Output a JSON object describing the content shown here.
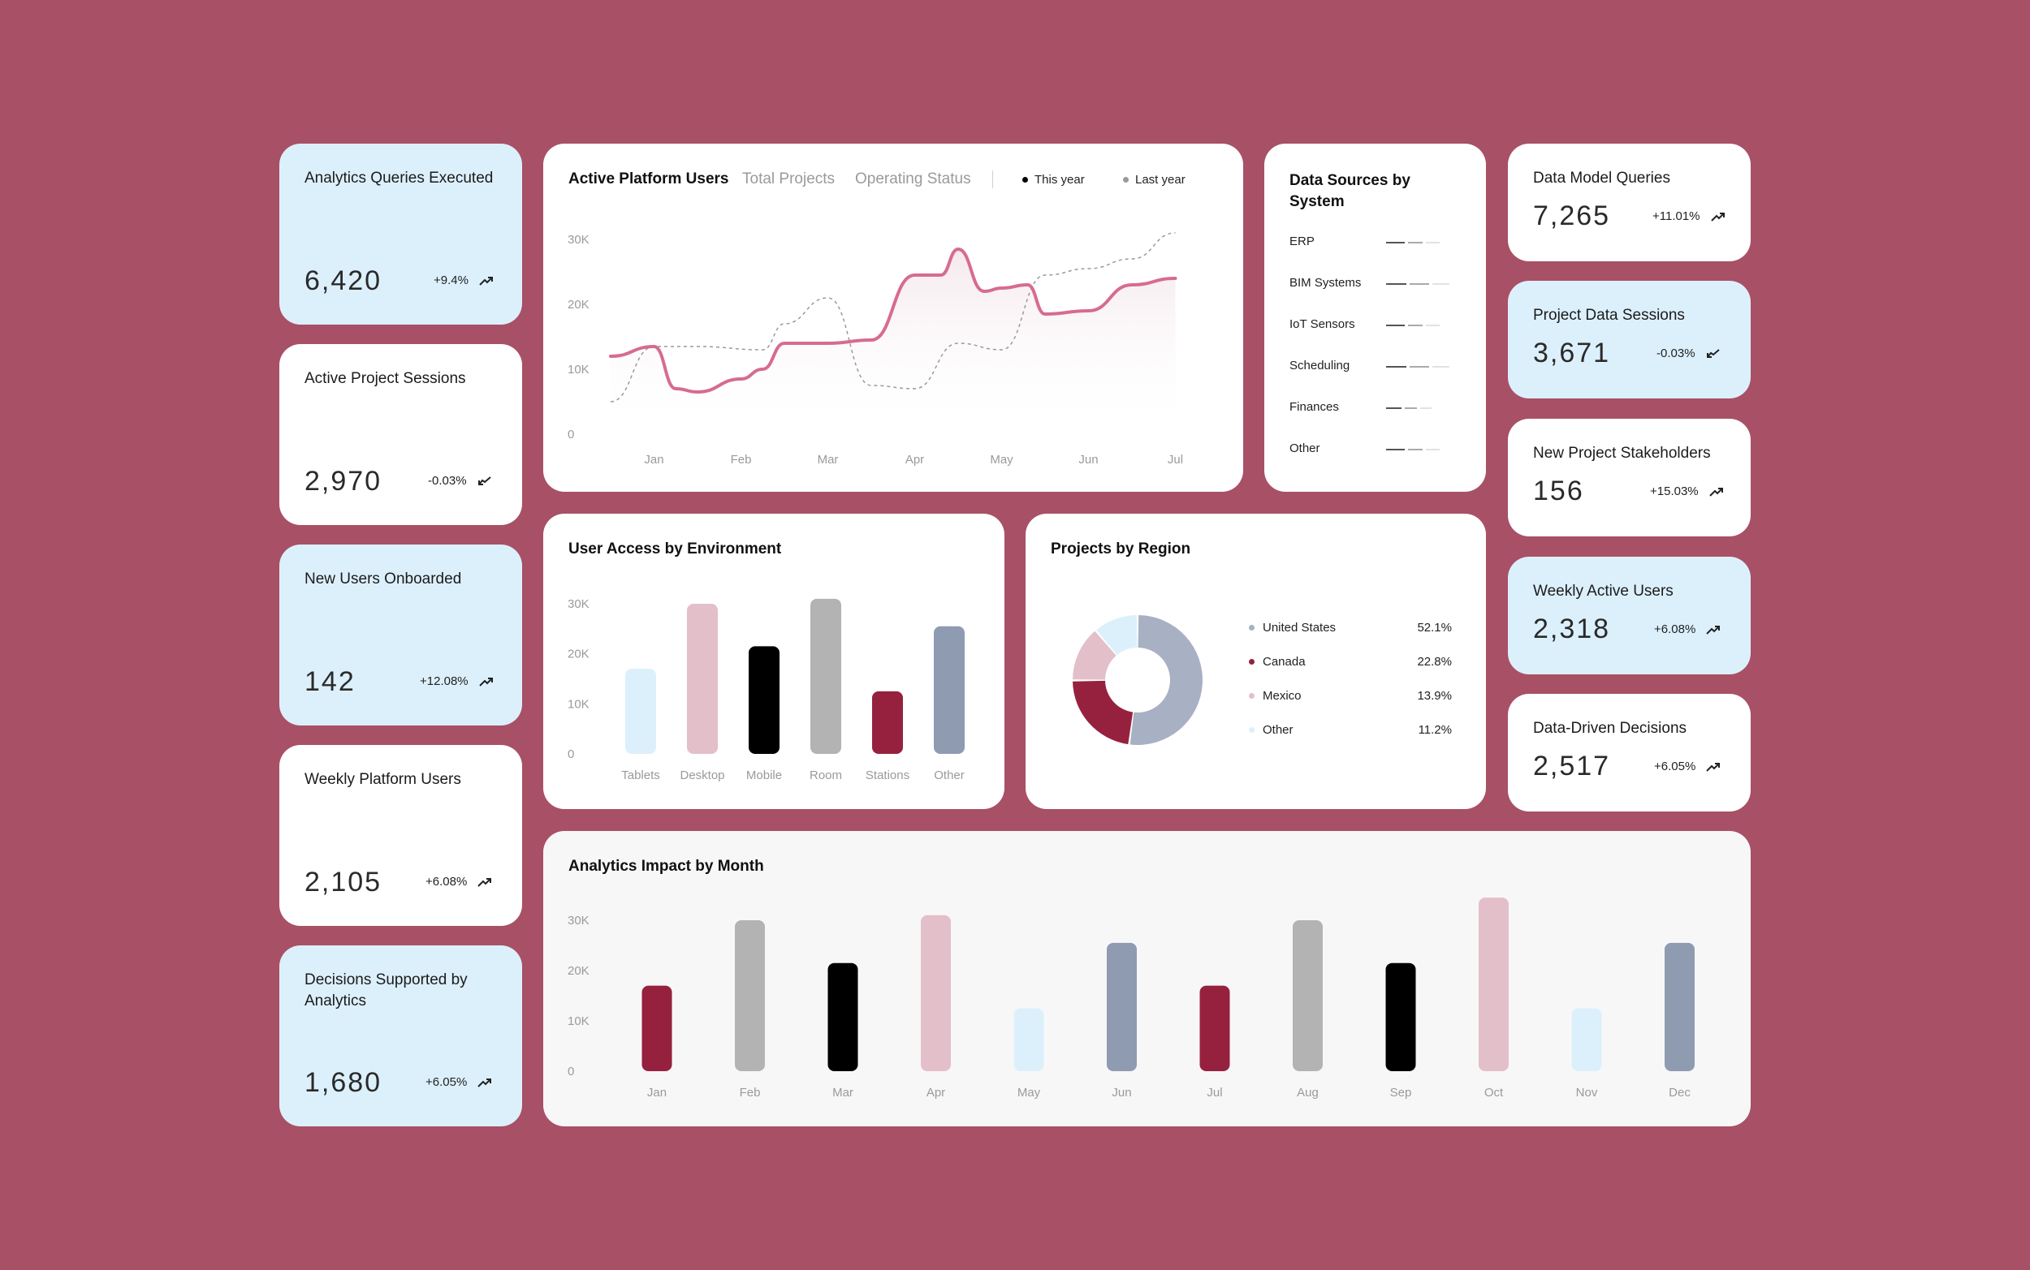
{
  "kpis_left": [
    {
      "title": "Analytics Queries Executed",
      "value": "6,420",
      "change": "+9.4%",
      "trend": "up"
    },
    {
      "title": "Active Project Sessions",
      "value": "2,970",
      "change": "-0.03%",
      "trend": "down"
    },
    {
      "title": "New Users Onboarded",
      "value": "142",
      "change": "+12.08%",
      "trend": "up"
    },
    {
      "title": "Weekly Platform Users",
      "value": "2,105",
      "change": "+6.08%",
      "trend": "up"
    },
    {
      "title": "Decisions Supported by Analytics",
      "value": "1,680",
      "change": "+6.05%",
      "trend": "up"
    }
  ],
  "kpis_right": [
    {
      "title": "Data Model Queries",
      "value": "7,265",
      "change": "+11.01%",
      "trend": "up"
    },
    {
      "title": "Project Data Sessions",
      "value": "3,671",
      "change": "-0.03%",
      "trend": "down"
    },
    {
      "title": "New Project Stakeholders",
      "value": "156",
      "change": "+15.03%",
      "trend": "up"
    },
    {
      "title": "Weekly Active Users",
      "value": "2,318",
      "change": "+6.08%",
      "trend": "up"
    },
    {
      "title": "Data-Driven Decisions",
      "value": "2,517",
      "change": "+6.05%",
      "trend": "up"
    }
  ],
  "line_panel": {
    "tabs": [
      "Active Platform Users",
      "Total Projects",
      "Operating Status"
    ],
    "legend": [
      "This year",
      "Last year"
    ]
  },
  "data_sources": {
    "title": "Data Sources by System",
    "rows": [
      {
        "label": "ERP",
        "segments": [
          0.4,
          0.3,
          0.3
        ]
      },
      {
        "label": "BIM Systems",
        "segments": [
          0.35,
          0.35,
          0.3
        ]
      },
      {
        "label": "IoT Sensors",
        "segments": [
          0.4,
          0.3,
          0.3
        ]
      },
      {
        "label": "Scheduling",
        "segments": [
          0.35,
          0.35,
          0.3
        ]
      },
      {
        "label": "Finances",
        "segments": [
          0.4,
          0.3,
          0.3
        ]
      },
      {
        "label": "Other",
        "segments": [
          0.4,
          0.3,
          0.3
        ]
      }
    ]
  },
  "regions": {
    "title": "Projects by Region",
    "items": [
      {
        "name": "United States",
        "pct": "52.1%",
        "color": "#a8b1c3"
      },
      {
        "name": "Canada",
        "pct": "22.8%",
        "color": "#96213f"
      },
      {
        "name": "Mexico",
        "pct": "13.9%",
        "color": "#e3bfc9"
      },
      {
        "name": "Other",
        "pct": "11.2%",
        "color": "#dcf0fc"
      }
    ]
  },
  "chart_data": [
    {
      "type": "line",
      "title": "Active Platform Users",
      "categories": [
        "Jan",
        "Feb",
        "Mar",
        "Apr",
        "May",
        "Jun",
        "Jul"
      ],
      "ylim": [
        0,
        30000
      ],
      "yticks": [
        "0",
        "10K",
        "20K",
        "30K"
      ],
      "series": [
        {
          "name": "This year",
          "x": [
            0,
            0.5,
            0.75,
            1,
            1.5,
            1.75,
            2,
            2.5,
            3,
            3.5,
            3.8,
            4,
            4.3,
            4.5,
            4.8,
            5,
            5.5,
            6,
            6.5
          ],
          "y": [
            12000,
            13500,
            7000,
            6500,
            8500,
            10000,
            14000,
            14000,
            14500,
            24500,
            24500,
            28500,
            22000,
            22500,
            23000,
            18500,
            19000,
            23000,
            24000
          ]
        },
        {
          "name": "Last year",
          "x": [
            0,
            0.5,
            1,
            1.75,
            2,
            2.5,
            3,
            3.5,
            4,
            4.5,
            5,
            5.5,
            6,
            6.5
          ],
          "y": [
            5000,
            13500,
            13500,
            13000,
            17000,
            21000,
            7500,
            7000,
            14000,
            13000,
            24500,
            25500,
            27000,
            31000
          ]
        }
      ]
    },
    {
      "type": "bar",
      "title": "User Access by Environment",
      "categories": [
        "Tablets",
        "Desktop",
        "Mobile",
        "Room",
        "Stations",
        "Other"
      ],
      "values": [
        17000,
        30000,
        21500,
        31000,
        12500,
        25500
      ],
      "colors": [
        "#dcf0fc",
        "#e3bfc9",
        "#000000",
        "#b3b3b3",
        "#96213f",
        "#8f9bb1"
      ],
      "ylim": [
        0,
        30000
      ],
      "yticks": [
        "0",
        "10K",
        "20K",
        "30K"
      ]
    },
    {
      "type": "pie",
      "title": "Projects by Region",
      "categories": [
        "United States",
        "Canada",
        "Mexico",
        "Other"
      ],
      "values": [
        52.1,
        22.8,
        13.9,
        11.2
      ]
    },
    {
      "type": "bar",
      "title": "Analytics Impact by Month",
      "categories": [
        "Jan",
        "Feb",
        "Mar",
        "Apr",
        "May",
        "Jun",
        "Jul",
        "Aug",
        "Sep",
        "Oct",
        "Nov",
        "Dec"
      ],
      "values": [
        17000,
        30000,
        21500,
        31000,
        12500,
        25500,
        17000,
        30000,
        21500,
        34500,
        12500,
        25500
      ],
      "colors": [
        "#96213f",
        "#b3b3b3",
        "#000000",
        "#e3bfc9",
        "#dcf0fc",
        "#8f9bb1",
        "#96213f",
        "#b3b3b3",
        "#000000",
        "#e3bfc9",
        "#dcf0fc",
        "#8f9bb1"
      ],
      "ylim": [
        0,
        30000
      ],
      "yticks": [
        "0",
        "10K",
        "20K",
        "30K"
      ]
    }
  ]
}
